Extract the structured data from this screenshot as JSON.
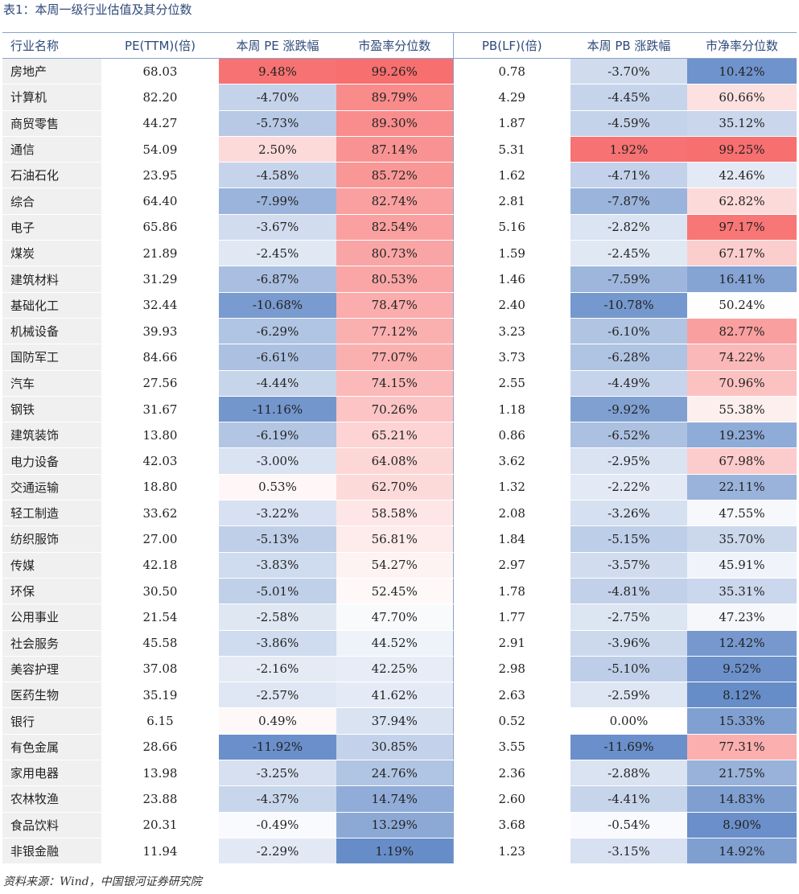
{
  "caption": "表1：本周一级行业估值及其分位数",
  "source": "资料来源：Wind，中国银河证券研究院",
  "colors": {
    "red": "#f76b6b",
    "blue": "#6289c7",
    "white": "#ffffff",
    "header": "#2f4a7a"
  },
  "headers": [
    "行业名称",
    "PE(TTM)(倍)",
    "本周 PE 涨跌幅",
    "市盈率分位数",
    "PB(LF)(倍)",
    "本周 PB 涨跌幅",
    "市净率分位数"
  ],
  "rows": [
    [
      "房地产",
      "68.03",
      "9.48%",
      "99.26%",
      "0.78",
      "-3.70%",
      "10.42%"
    ],
    [
      "计算机",
      "82.20",
      "-4.70%",
      "89.79%",
      "4.29",
      "-4.45%",
      "60.66%"
    ],
    [
      "商贸零售",
      "44.27",
      "-5.73%",
      "89.30%",
      "1.87",
      "-4.59%",
      "35.12%"
    ],
    [
      "通信",
      "54.09",
      "2.50%",
      "87.14%",
      "5.31",
      "1.92%",
      "99.25%"
    ],
    [
      "石油石化",
      "23.95",
      "-4.58%",
      "85.72%",
      "1.62",
      "-4.71%",
      "42.46%"
    ],
    [
      "综合",
      "64.40",
      "-7.99%",
      "82.74%",
      "2.81",
      "-7.87%",
      "62.82%"
    ],
    [
      "电子",
      "65.86",
      "-3.67%",
      "82.54%",
      "5.16",
      "-2.82%",
      "97.17%"
    ],
    [
      "煤炭",
      "21.89",
      "-2.45%",
      "80.73%",
      "1.59",
      "-2.45%",
      "67.17%"
    ],
    [
      "建筑材料",
      "31.29",
      "-6.87%",
      "80.53%",
      "1.46",
      "-7.59%",
      "16.41%"
    ],
    [
      "基础化工",
      "32.44",
      "-10.68%",
      "78.47%",
      "2.40",
      "-10.78%",
      "50.24%"
    ],
    [
      "机械设备",
      "39.93",
      "-6.29%",
      "77.12%",
      "3.23",
      "-6.10%",
      "82.77%"
    ],
    [
      "国防军工",
      "84.66",
      "-6.61%",
      "77.07%",
      "3.73",
      "-6.28%",
      "74.22%"
    ],
    [
      "汽车",
      "27.56",
      "-4.44%",
      "74.15%",
      "2.55",
      "-4.49%",
      "70.96%"
    ],
    [
      "钢铁",
      "31.67",
      "-11.16%",
      "70.26%",
      "1.18",
      "-9.92%",
      "55.38%"
    ],
    [
      "建筑装饰",
      "13.80",
      "-6.19%",
      "65.21%",
      "0.86",
      "-6.52%",
      "19.23%"
    ],
    [
      "电力设备",
      "42.03",
      "-3.00%",
      "64.08%",
      "3.62",
      "-2.95%",
      "67.98%"
    ],
    [
      "交通运输",
      "18.80",
      "0.53%",
      "62.70%",
      "1.32",
      "-2.22%",
      "22.11%"
    ],
    [
      "轻工制造",
      "33.62",
      "-3.22%",
      "58.58%",
      "2.08",
      "-3.26%",
      "47.55%"
    ],
    [
      "纺织服饰",
      "27.00",
      "-5.13%",
      "56.81%",
      "1.84",
      "-5.15%",
      "35.70%"
    ],
    [
      "传媒",
      "42.18",
      "-3.83%",
      "54.27%",
      "2.97",
      "-3.57%",
      "45.91%"
    ],
    [
      "环保",
      "30.50",
      "-5.01%",
      "52.45%",
      "1.78",
      "-4.81%",
      "35.31%"
    ],
    [
      "公用事业",
      "21.54",
      "-2.58%",
      "47.70%",
      "1.77",
      "-2.75%",
      "47.23%"
    ],
    [
      "社会服务",
      "45.58",
      "-3.86%",
      "44.52%",
      "2.91",
      "-3.96%",
      "12.42%"
    ],
    [
      "美容护理",
      "37.08",
      "-2.16%",
      "42.25%",
      "2.98",
      "-5.10%",
      "9.52%"
    ],
    [
      "医药生物",
      "35.19",
      "-2.57%",
      "41.62%",
      "2.63",
      "-2.59%",
      "8.12%"
    ],
    [
      "银行",
      "6.15",
      "0.49%",
      "37.94%",
      "0.52",
      "0.00%",
      "15.33%"
    ],
    [
      "有色金属",
      "28.66",
      "-11.92%",
      "30.85%",
      "3.55",
      "-11.69%",
      "77.31%"
    ],
    [
      "家用电器",
      "13.98",
      "-3.25%",
      "24.76%",
      "2.36",
      "-2.88%",
      "21.75%"
    ],
    [
      "农林牧渔",
      "23.88",
      "-4.37%",
      "14.74%",
      "2.60",
      "-4.41%",
      "14.83%"
    ],
    [
      "食品饮料",
      "20.31",
      "-0.49%",
      "13.29%",
      "3.68",
      "-0.54%",
      "8.90%"
    ],
    [
      "非银金融",
      "11.94",
      "-2.29%",
      "1.19%",
      "1.23",
      "-3.15%",
      "14.92%"
    ]
  ]
}
